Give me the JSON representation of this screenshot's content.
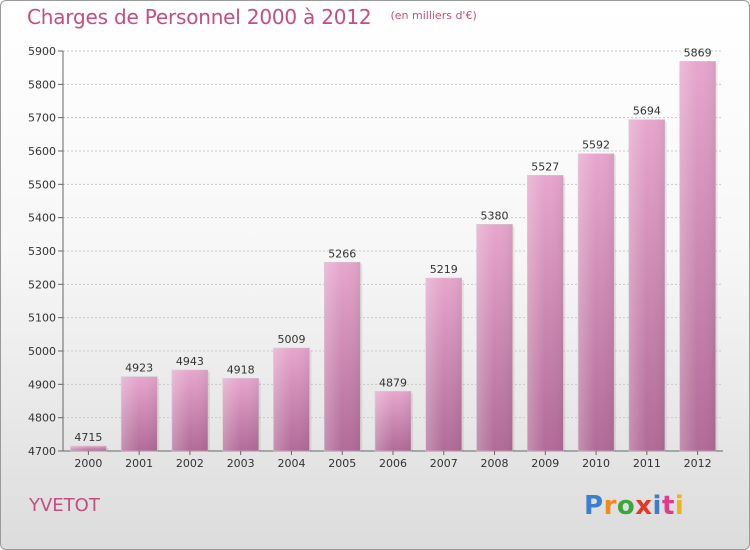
{
  "chart_data": {
    "type": "bar",
    "title": "Charges de Personnel 2000 à 2012",
    "subtitle": "(en milliers d'€)",
    "categories": [
      "2000",
      "2001",
      "2002",
      "2003",
      "2004",
      "2005",
      "2006",
      "2007",
      "2008",
      "2009",
      "2010",
      "2011",
      "2012"
    ],
    "values": [
      4715,
      4923,
      4943,
      4918,
      5009,
      5266,
      4879,
      5219,
      5380,
      5527,
      5592,
      5694,
      5869
    ],
    "ylim": [
      4700,
      5900
    ],
    "yticks": [
      4700,
      4800,
      4900,
      5000,
      5100,
      5200,
      5300,
      5400,
      5500,
      5600,
      5700,
      5800,
      5900
    ],
    "grid": true,
    "bar_color": "#d283b3",
    "accent_color": "#c34e82"
  },
  "footer": {
    "city": "YVETOT",
    "logo": "Proxiti",
    "logo_colors": [
      "#3a7fd0",
      "#f08a1c",
      "#3ca63c",
      "#e23a2a",
      "#3a7fd0",
      "#e03a8a",
      "#f0b21c"
    ]
  }
}
